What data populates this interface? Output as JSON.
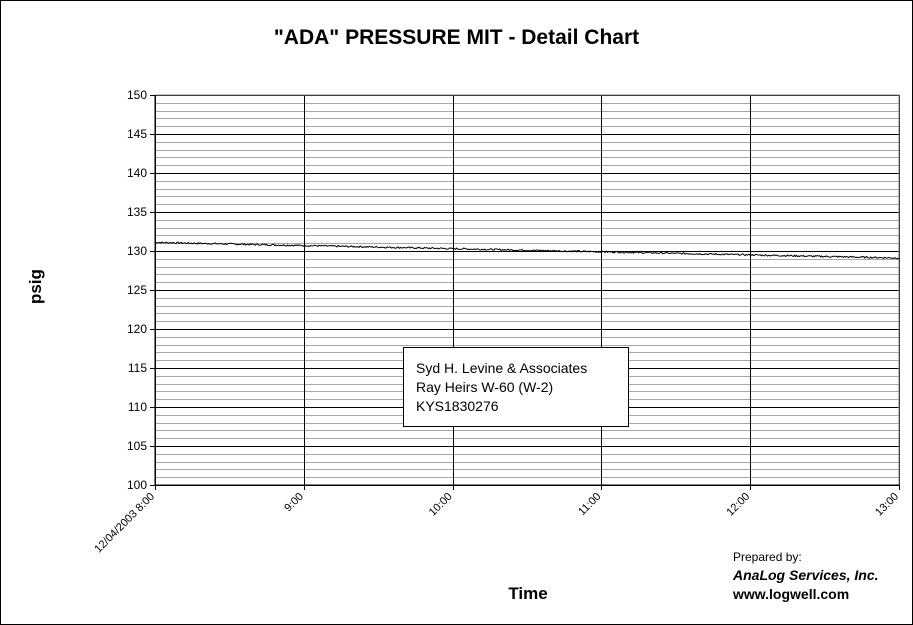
{
  "chart_data": {
    "type": "line",
    "title": "\"ADA\" PRESSURE MIT - Detail Chart",
    "xlabel": "Time",
    "ylabel": "psig",
    "ylim": [
      100,
      150
    ],
    "y_ticks": [
      "150",
      "145",
      "140",
      "135",
      "130",
      "125",
      "120",
      "115",
      "110",
      "105",
      "100"
    ],
    "y_tick_values": [
      150,
      145,
      140,
      135,
      130,
      125,
      120,
      115,
      110,
      105,
      100
    ],
    "x_tick_labels": [
      "12/04/2003 8:00",
      "9:00",
      "10:00",
      "11:00",
      "12:00",
      "13:00"
    ],
    "x_tick_hours": [
      8,
      9,
      10,
      11,
      12,
      13
    ],
    "xlim_hours": [
      8,
      13
    ],
    "grid": true,
    "line_color": "#000000",
    "series": [
      {
        "x_hours": [
          8.0,
          8.5,
          9.0,
          9.5,
          10.0,
          10.5,
          11.0,
          11.5,
          12.0,
          12.5,
          13.0
        ],
        "values": [
          131.1,
          130.9,
          130.7,
          130.5,
          130.3,
          130.1,
          129.9,
          129.7,
          129.5,
          129.3,
          129.1
        ]
      }
    ]
  },
  "annotation": {
    "line1": "Syd H. Levine & Associates",
    "line2": "Ray Heirs W-60 (W-2)",
    "line3": "KYS1830276"
  },
  "credit": {
    "prepared_by": "Prepared by:",
    "company": "AnaLog Services, Inc.",
    "website": "www.logwell.com"
  }
}
